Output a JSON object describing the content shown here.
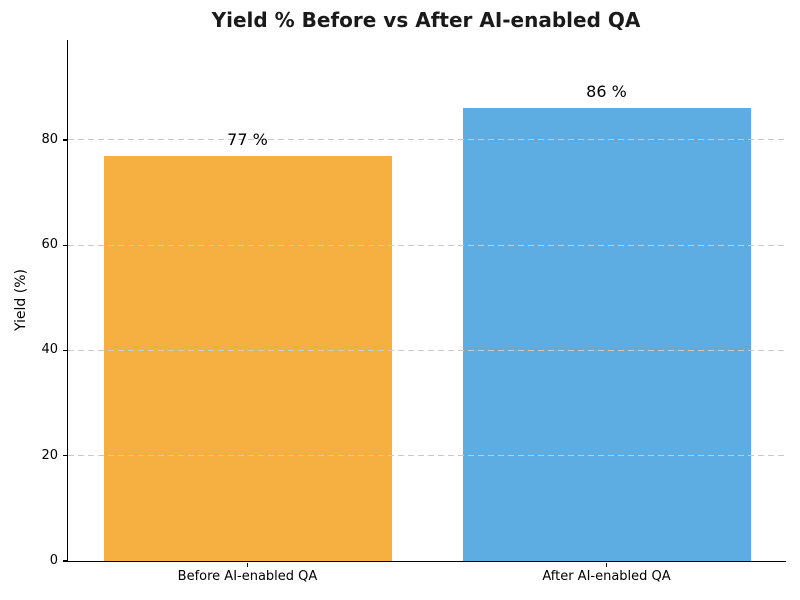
{
  "chart_data": {
    "type": "bar",
    "title": "Yield % Before vs After AI-enabled QA",
    "ylabel": "Yield (%)",
    "xlabel": "",
    "categories": [
      "Before AI-enabled QA",
      "After AI-enabled QA"
    ],
    "values": [
      77,
      86
    ],
    "value_labels": [
      "77 %",
      "86 %"
    ],
    "bar_colors": [
      "#F5B041",
      "#5DADE2"
    ],
    "yticks": [
      0,
      20,
      40,
      60,
      80
    ],
    "ylim": [
      0,
      99
    ],
    "grid": {
      "axis": "y",
      "style": "dashed",
      "color": "#c9c9c9",
      "above_bars": true
    },
    "legend": "none",
    "background": "#ffffff"
  }
}
